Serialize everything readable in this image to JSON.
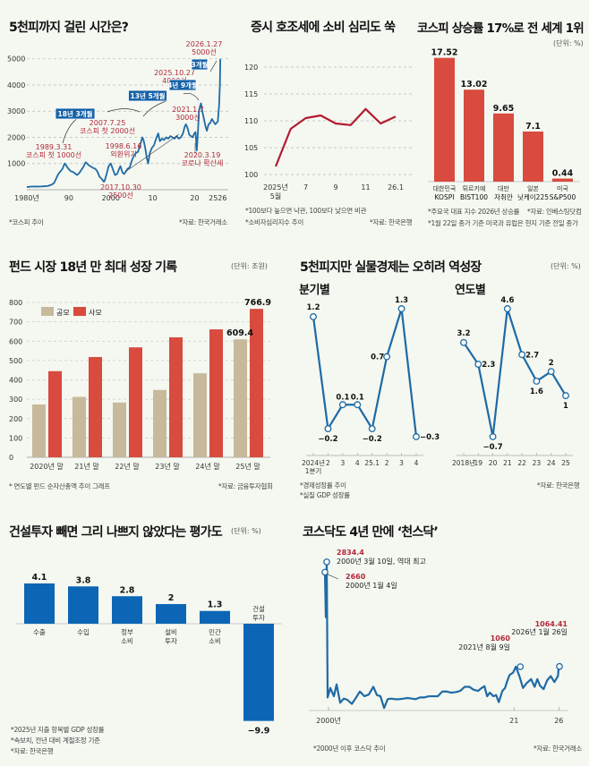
{
  "colors": {
    "background": "#f4f8f1",
    "kospi_blue": "#1f6aa5",
    "red": "#d84b3e",
    "crimson": "#b31b30",
    "beige": "#c8b99c",
    "gdp_blue": "#1f6aa5",
    "bar_blue": "#0d66b5",
    "annotation_red": "#b3283a",
    "badge_blue": "#1662a8"
  },
  "chart_data": [
    {
      "id": "kospi",
      "type": "line",
      "title": "5천피까지 걸린 시간은?",
      "yticks": [
        1000,
        2000,
        3000,
        4000,
        5000
      ],
      "ylim": [
        0,
        5400
      ],
      "xticks": [
        "1980년",
        "90",
        "2000",
        "10",
        "20",
        "2526"
      ],
      "xlim": [
        1980,
        2026.5
      ],
      "grid": true,
      "series": [
        {
          "name": "코스피",
          "x": [
            1980,
            1981,
            1982,
            1983,
            1984,
            1985,
            1986,
            1986.5,
            1987,
            1987.5,
            1988,
            1988.5,
            1989,
            1989.3,
            1989.8,
            1990.5,
            1991,
            1991.5,
            1992,
            1992.5,
            1993,
            1993.5,
            1994,
            1994.8,
            1995.3,
            1995.8,
            1996.3,
            1996.8,
            1997.3,
            1997.8,
            1998.3,
            1998.5,
            1999,
            1999.5,
            2000,
            2000.5,
            2001,
            2001.5,
            2002,
            2002.3,
            2002.8,
            2003.2,
            2003.6,
            2004,
            2004.5,
            2005,
            2005.5,
            2006,
            2006.5,
            2007,
            2007.5,
            2007.8,
            2008.2,
            2008.6,
            2008.9,
            2009.3,
            2009.8,
            2010.3,
            2010.8,
            2011.3,
            2011.7,
            2012.2,
            2012.7,
            2013.2,
            2013.7,
            2014.2,
            2014.7,
            2015.2,
            2015.7,
            2016.2,
            2016.7,
            2017.2,
            2017.6,
            2017.9,
            2018.3,
            2018.7,
            2019.1,
            2019.5,
            2019.9,
            2020.2,
            2020.5,
            2020.8,
            2021.0,
            2021.3,
            2021.5,
            2021.8,
            2022.2,
            2022.6,
            2022.9,
            2023.3,
            2023.7,
            2024.1,
            2024.5,
            2024.9,
            2025.2,
            2025.5,
            2025.8,
            2026.0,
            2026.1
          ],
          "values": [
            100,
            120,
            125,
            120,
            130,
            140,
            200,
            260,
            430,
            600,
            700,
            800,
            1000,
            950,
            820,
            700,
            680,
            620,
            560,
            640,
            760,
            880,
            1050,
            930,
            880,
            830,
            800,
            700,
            500,
            420,
            310,
            320,
            600,
            900,
            1000,
            780,
            560,
            600,
            800,
            900,
            650,
            600,
            700,
            800,
            850,
            1100,
            1300,
            1400,
            1450,
            1700,
            2000,
            1900,
            1600,
            1200,
            1000,
            1400,
            1600,
            1700,
            1950,
            2150,
            1850,
            1950,
            1900,
            2000,
            1950,
            2050,
            2000,
            1950,
            2050,
            1950,
            2000,
            2150,
            2400,
            2500,
            2350,
            2100,
            2050,
            2000,
            2150,
            2200,
            1500,
            2300,
            3000,
            3200,
            3300,
            3000,
            2700,
            2400,
            2250,
            2500,
            2550,
            2700,
            2600,
            2500,
            2550,
            2600,
            3200,
            4000,
            5000
          ]
        }
      ],
      "annotations": [
        {
          "label": "1989.3.31",
          "sub": "코스피 첫 1000선"
        },
        {
          "label": "1998.6.16",
          "sub": "외환위기"
        },
        {
          "label": "2007.7.25",
          "sub": "코스피 첫 2000선"
        },
        {
          "label": "2017.10.30",
          "sub": "2500선"
        },
        {
          "label": "2021.1.7",
          "sub": "3000선"
        },
        {
          "label": "2020.3.19",
          "sub": "코로나 확산세"
        },
        {
          "label": "2025.10.27",
          "sub": "4000선"
        },
        {
          "label": "2026.1.27",
          "sub": "5000선"
        }
      ],
      "badges": [
        "18년 3개월",
        "13년 5개월",
        "4년 9개월",
        "3개월"
      ],
      "notes": [
        "*코스피 추이",
        "*자료: 한국거래소"
      ]
    },
    {
      "id": "csi",
      "type": "line",
      "title": "증시 호조세에 소비 심리도 쑥",
      "yticks": [
        100,
        105,
        110,
        115,
        120
      ],
      "ylim": [
        100,
        120
      ],
      "xticks": [
        "2025년 5월",
        "7",
        "9",
        "11",
        "26.1"
      ],
      "grid": true,
      "series": [
        {
          "name": "소비자심리지수",
          "x": [
            "2025.5",
            "2025.6",
            "2025.7",
            "2025.8",
            "2025.9",
            "2025.10",
            "2025.11",
            "2025.12",
            "2026.1"
          ],
          "values": [
            101.5,
            108.5,
            110.5,
            111.0,
            109.5,
            109.2,
            112.2,
            109.5,
            110.8
          ]
        }
      ],
      "notes": [
        "*100보다 높으면 낙관, 100보다 낮으면 비관",
        "*소비자심리지수 추이",
        "*자료: 한국은행"
      ]
    },
    {
      "id": "returns",
      "type": "bar",
      "title": "코스피 상승률 17%로 전 세계 1위",
      "unit": "(단위: %)",
      "categories": [
        [
          "대한민국",
          "KOSPI"
        ],
        [
          "튀르키예",
          "BIST100"
        ],
        [
          "대만",
          "자취안"
        ],
        [
          "일본",
          "닛케이225"
        ],
        [
          "미국",
          "S&P500"
        ]
      ],
      "values": [
        17.52,
        13.02,
        9.65,
        7.1,
        0.44
      ],
      "value_labels": [
        "17.52",
        "13.02",
        "9.65",
        "7.1",
        "0.44"
      ],
      "ylim": [
        0,
        19
      ],
      "notes": [
        "*주요국 대표 지수 2026년 상승률",
        "*자료: 인베스팅닷컴",
        "*1월 22일 종가 기준 미국과 유럽은 현지 기준 전일 종가"
      ]
    },
    {
      "id": "fund",
      "type": "bar",
      "title": "펀드 시장 18년 만 최대 성장 기록",
      "unit": "(단위: 조원)",
      "categories": [
        "2020년 말",
        "21년 말",
        "22년 말",
        "23년 말",
        "24년 말",
        "25년 말"
      ],
      "series": [
        {
          "name": "공모",
          "values": [
            273,
            312,
            283,
            348,
            434,
            609.4
          ]
        },
        {
          "name": "사모",
          "values": [
            445,
            518,
            568,
            620,
            661,
            766.9
          ]
        }
      ],
      "value_labels": {
        "공모_last": "609.4",
        "사모_last": "766.9"
      },
      "yticks": [
        0,
        100,
        200,
        300,
        400,
        500,
        600,
        700,
        800
      ],
      "ylim": [
        0,
        800
      ],
      "legend": "top-left",
      "grid": true,
      "notes": [
        "* 연도별 펀드 순자산총액 추이 그래프",
        "*자료: 금융투자협회"
      ]
    },
    {
      "id": "gdp_quarterly",
      "type": "line",
      "title": "5천피지만 실물경제는 오히려 역성장",
      "subtitle": "분기별",
      "unit": "(단위: %)",
      "categories": [
        "2024년 1분기",
        "2",
        "3",
        "4",
        "25.1",
        "2",
        "3",
        "4"
      ],
      "values": [
        1.2,
        -0.2,
        0.1,
        0.1,
        -0.2,
        0.7,
        1.3,
        -0.3
      ],
      "value_labels": [
        "1.2",
        "−0.2",
        "0.1",
        "0.1",
        "−0.2",
        "0.7",
        "1.3",
        "−0.3"
      ]
    },
    {
      "id": "gdp_annual",
      "type": "line",
      "subtitle": "연도별",
      "categories": [
        "2018년",
        "19",
        "20",
        "21",
        "22",
        "23",
        "24",
        "25"
      ],
      "values": [
        3.2,
        2.3,
        -0.7,
        4.6,
        2.7,
        1.6,
        2,
        1
      ],
      "value_labels": [
        "3.2",
        "2.3",
        "−0.7",
        "4.6",
        "2.7",
        "1.6",
        "2",
        "1"
      ],
      "notes": [
        "*경제성장률 추이",
        "*실질 GDP 성장률",
        "*자료: 한국은행"
      ]
    },
    {
      "id": "construction",
      "type": "bar",
      "title": "건설투자 빼면 그리 나쁘지 않았다는 평가도",
      "unit": "(단위: %)",
      "categories": [
        [
          "수출"
        ],
        [
          "수입"
        ],
        [
          "정부",
          "소비"
        ],
        [
          "설비",
          "투자"
        ],
        [
          "민간",
          "소비"
        ],
        [
          "건설",
          "투자"
        ]
      ],
      "values": [
        4.1,
        3.8,
        2.8,
        2,
        1.3,
        -9.9
      ],
      "value_labels": [
        "4.1",
        "3.8",
        "2.8",
        "2",
        "1.3",
        "−9.9"
      ],
      "notes": [
        "*2025년 지출 항목별 GDP 성장률",
        "*속보치, 전년 대비 계절조정 기준",
        "*자료: 한국은행"
      ]
    },
    {
      "id": "kosdaq",
      "type": "line",
      "title": "코스닥도 4년 만에 ‘천스닥’",
      "xticks": [
        "2000년",
        "21",
        "26"
      ],
      "ylim": [
        0,
        3000
      ],
      "series": [
        {
          "name": "코스닥",
          "x": [
            1999.9,
            2000.0,
            2000.1,
            2000.2,
            2000.5,
            2000.9,
            2001.2,
            2001.6,
            2002.0,
            2002.4,
            2002.9,
            2003.3,
            2003.8,
            2004.3,
            2004.8,
            2005.3,
            2005.7,
            2006.1,
            2006.5,
            2006.9,
            2007.3,
            2007.7,
            2008.2,
            2008.7,
            2009.1,
            2009.6,
            2010.0,
            2010.5,
            2011.0,
            2011.5,
            2012.0,
            2012.5,
            2013.0,
            2013.5,
            2014.0,
            2014.5,
            2015.0,
            2015.5,
            2016.0,
            2016.5,
            2017.0,
            2017.3,
            2017.7,
            2018.0,
            2018.3,
            2018.7,
            2019.0,
            2019.3,
            2019.7,
            2020.0,
            2020.2,
            2020.5,
            2020.9,
            2021.2,
            2021.6,
            2022.0,
            2022.4,
            2022.9,
            2023.3,
            2023.6,
            2023.9,
            2024.3,
            2024.7,
            2025.1,
            2025.5,
            2025.9,
            2026.0,
            2026.07
          ],
          "values": [
            2660,
            1900,
            2834.4,
            540,
            700,
            560,
            760,
            450,
            520,
            500,
            430,
            520,
            640,
            560,
            590,
            720,
            580,
            560,
            360,
            510,
            520,
            510,
            510,
            520,
            530,
            520,
            510,
            540,
            540,
            560,
            560,
            560,
            640,
            640,
            620,
            630,
            650,
            720,
            720,
            670,
            650,
            690,
            730,
            560,
            620,
            560,
            580,
            460,
            650,
            700,
            800,
            920,
            960,
            1060,
            900,
            700,
            780,
            850,
            720,
            850,
            740,
            680,
            830,
            900,
            800,
            900,
            1064.41,
            1064.41
          ]
        }
      ],
      "annotations": [
        {
          "value": "2834.4",
          "label": "2000년 3월 10일, 역대 최고"
        },
        {
          "value": "2660",
          "label": "2000년 1월 4일"
        },
        {
          "value": "1060",
          "label": "2021년 8월 9일"
        },
        {
          "value": "1064.41",
          "label": "2026년 1월 26일"
        }
      ],
      "notes": [
        "*2000년 이후 코스닥 추이",
        "*자료: 한국거래소"
      ]
    }
  ]
}
